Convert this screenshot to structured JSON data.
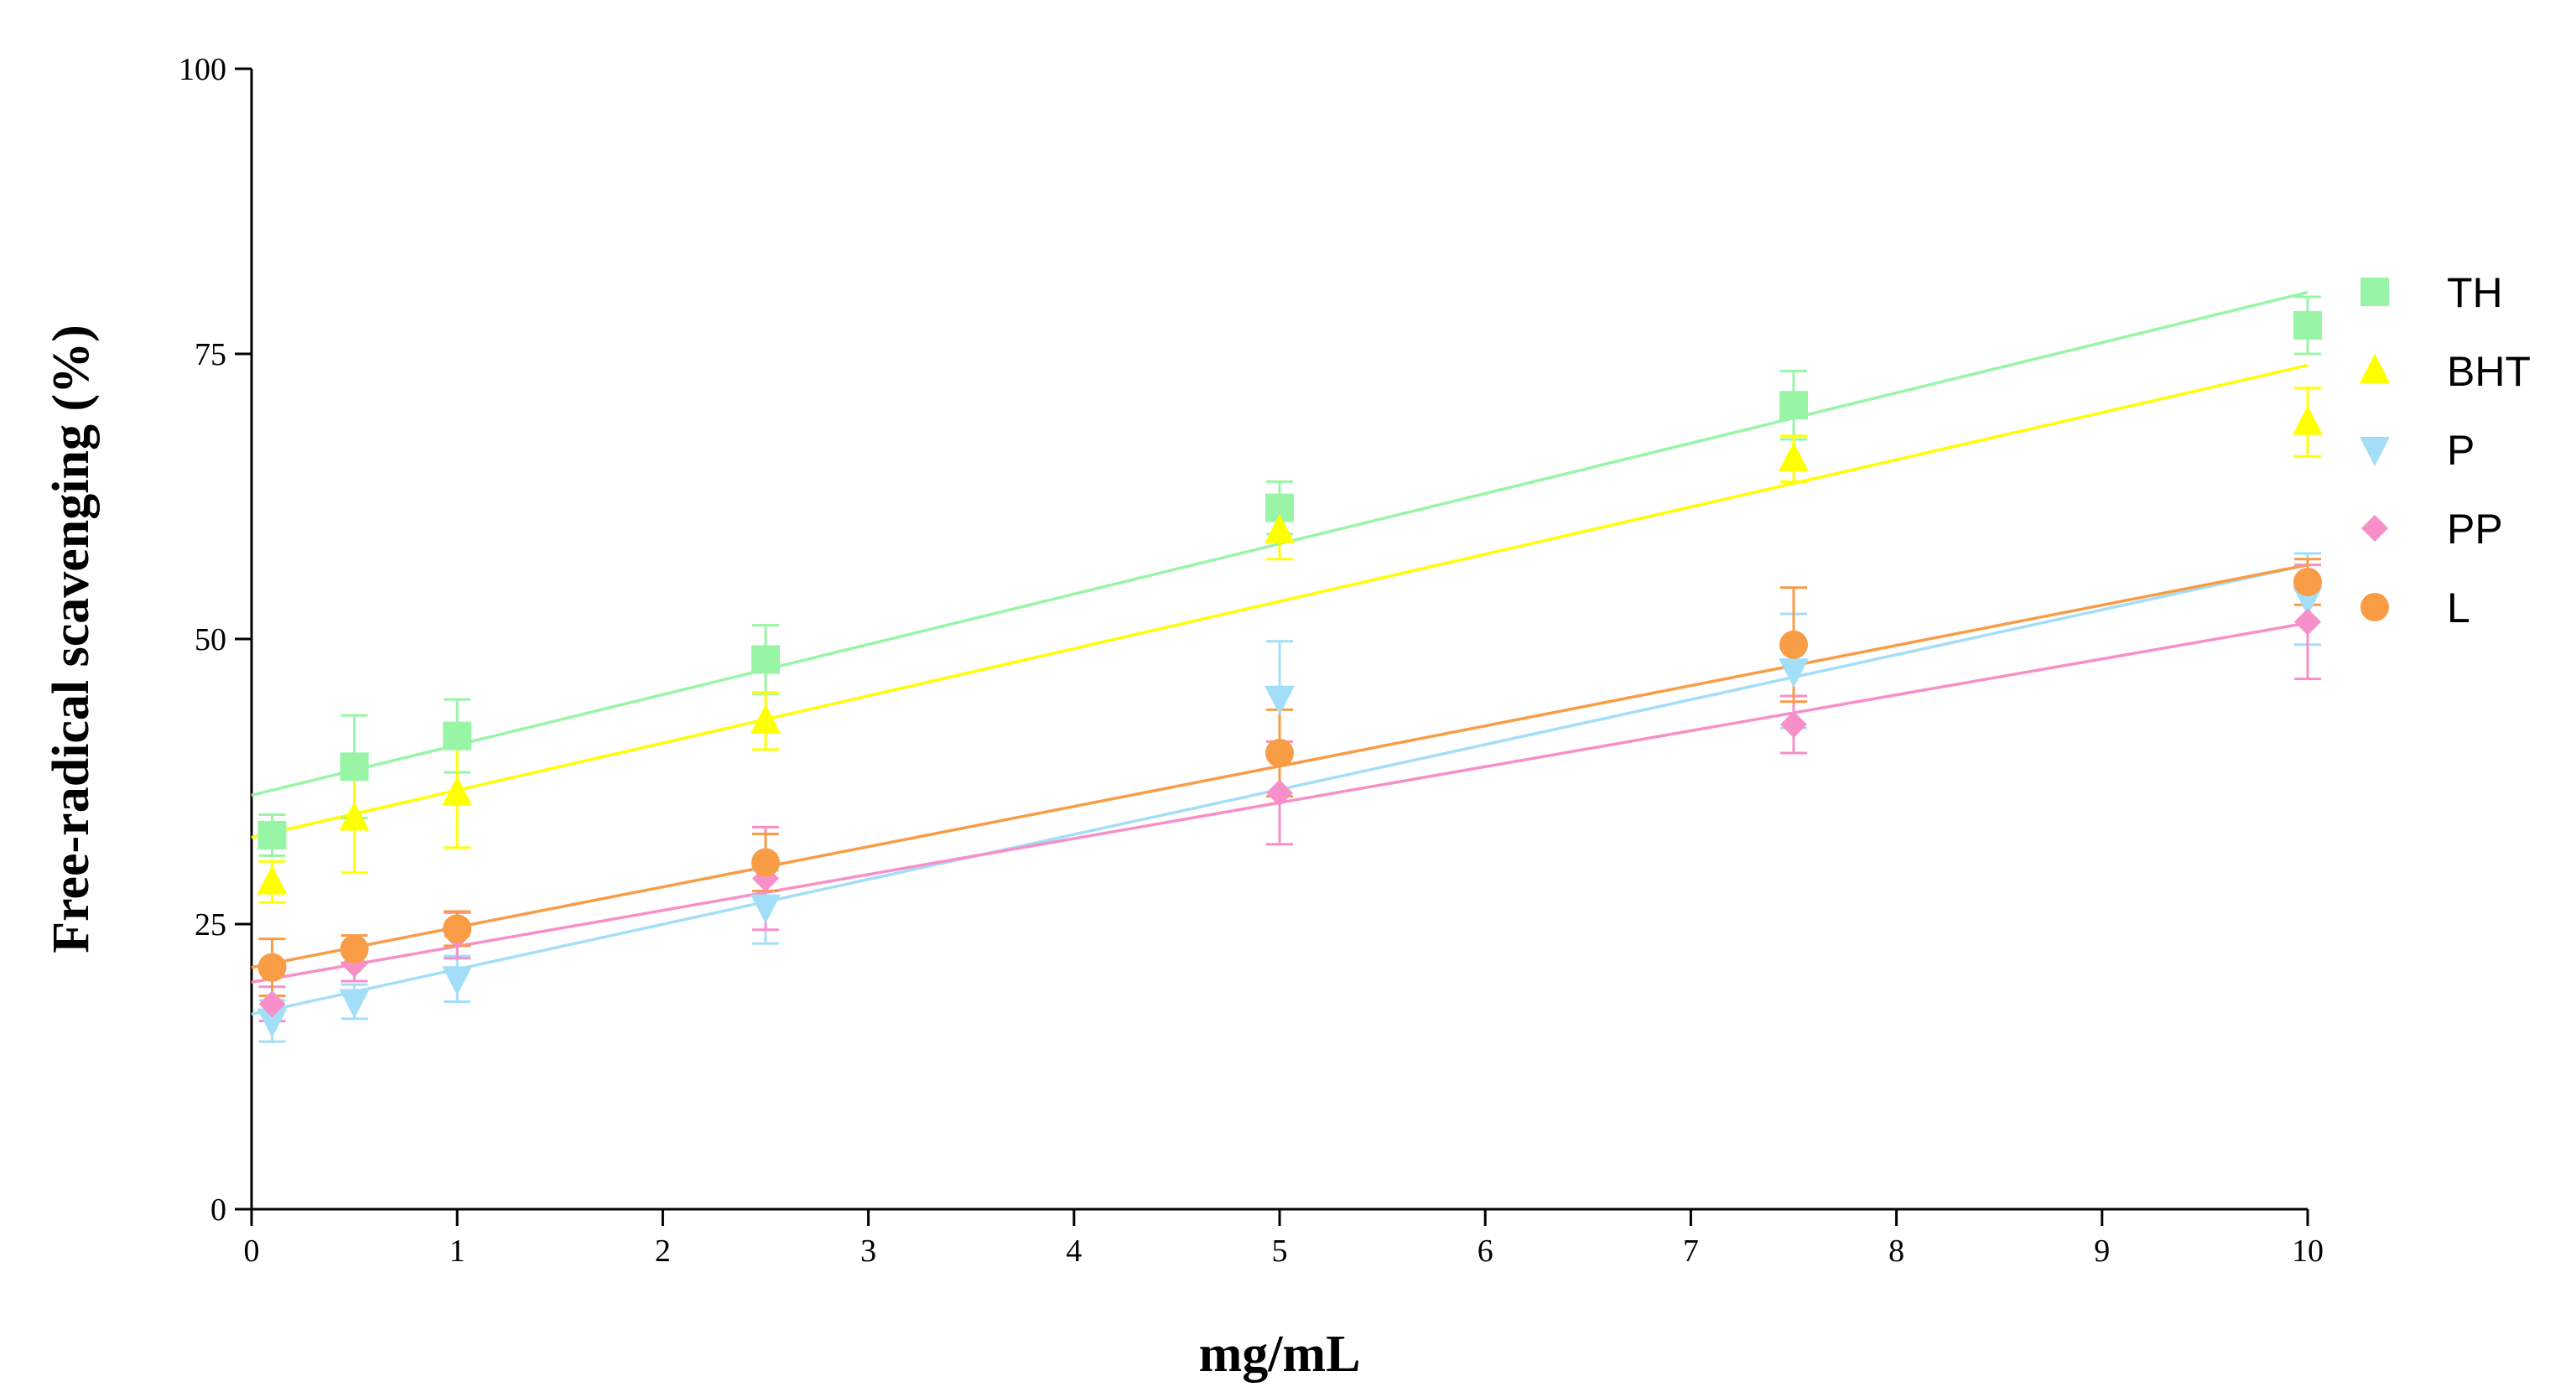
{
  "chart_data": {
    "type": "scatter",
    "title": "",
    "xlabel": "mg/mL",
    "ylabel": "Free-radical scavenging (%)",
    "xlim": [
      0,
      10
    ],
    "ylim": [
      0,
      100
    ],
    "x_ticks": [
      "0",
      "1",
      "2",
      "3",
      "4",
      "5",
      "6",
      "7",
      "8",
      "9",
      "10"
    ],
    "y_ticks": [
      "0",
      "25",
      "50",
      "75",
      "100"
    ],
    "grid": false,
    "legend_position": "right",
    "x": [
      0.1,
      0.5,
      1,
      2.5,
      5,
      7.5,
      10
    ],
    "series": [
      {
        "name": "TH",
        "color": "#99f5a6",
        "marker": "square",
        "values": [
          32.8,
          38.8,
          41.5,
          48.2,
          61.5,
          70.5,
          77.5
        ],
        "errors": [
          1.8,
          4.5,
          3.2,
          3.0,
          2.3,
          3.0,
          2.5
        ],
        "fit": [
          36.3,
          80.4
        ]
      },
      {
        "name": "BHT",
        "color": "#ffff00",
        "marker": "triangle-up",
        "values": [
          28.7,
          34.3,
          36.5,
          42.8,
          59.5,
          65.8,
          69.0
        ],
        "errors": [
          1.8,
          4.8,
          4.8,
          2.5,
          2.5,
          2.0,
          3.0
        ],
        "fit": [
          32.6,
          74.0
        ]
      },
      {
        "name": "P",
        "color": "#a3def8",
        "marker": "triangle-down",
        "values": [
          16.5,
          18.2,
          20.2,
          26.5,
          44.8,
          47.2,
          53.5
        ],
        "errors": [
          1.8,
          1.5,
          2.0,
          3.2,
          5.0,
          5.0,
          4.0
        ],
        "fit": [
          17.1,
          56.5
        ]
      },
      {
        "name": "PP",
        "color": "#f78fc9",
        "marker": "diamond",
        "values": [
          18.0,
          21.5,
          24.0,
          29.0,
          36.5,
          42.5,
          51.5
        ],
        "errors": [
          1.5,
          1.5,
          2.0,
          4.5,
          4.5,
          2.5,
          5.0
        ],
        "fit": [
          19.9,
          51.4
        ]
      },
      {
        "name": "L",
        "color": "#f89c45",
        "marker": "circle",
        "values": [
          21.2,
          22.8,
          24.6,
          30.4,
          40.0,
          49.5,
          55.0
        ],
        "errors": [
          2.5,
          1.2,
          1.5,
          2.5,
          3.8,
          5.0,
          2.0
        ],
        "fit": [
          21.2,
          56.5
        ]
      }
    ]
  }
}
